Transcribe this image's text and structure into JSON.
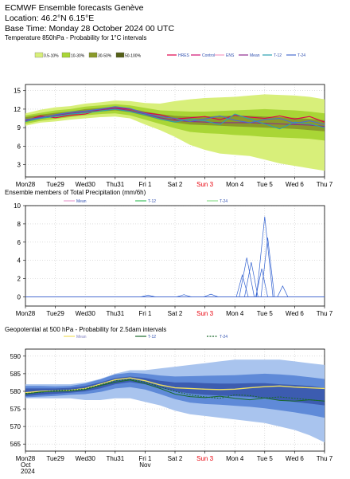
{
  "header": {
    "title": "ECMWF Ensemble forecasts Genève",
    "location": "Location:  46.2°N 6.15°E",
    "base_time": "Base Time: Monday 28 October 2024 00 UTC"
  },
  "x_axis": {
    "labels": [
      "Mon28",
      "Tue29",
      "Wed30",
      "Thu31",
      "Fri 1",
      "Sat 2",
      "Sun 3",
      "Mon 4",
      "Tue 5",
      "Wed 6",
      "Thu 7"
    ],
    "sunday_color": "#e8000b",
    "bottom_sub": {
      "Mon28": [
        "Oct",
        "2024"
      ],
      "Fri 1": [
        "Nov"
      ]
    }
  },
  "chart_data": [
    {
      "type": "area",
      "title": "Temperature 850hPa - Probability for 1°C intervals",
      "ylim": [
        1,
        16
      ],
      "yticks": [
        3,
        6,
        9,
        12,
        15
      ],
      "grid": true,
      "legend_bands": [
        {
          "label": "0.5-10%",
          "color": "#d8ef7a"
        },
        {
          "label": "10-30%",
          "color": "#a9d636"
        },
        {
          "label": "30-50%",
          "color": "#8a9a2a"
        },
        {
          "label": "50-100%",
          "color": "#556018"
        }
      ],
      "legend_lines": [
        {
          "label": "HRES",
          "color": "#e0004a"
        },
        {
          "label": "Control",
          "color": "#d01070"
        },
        {
          "label": "ENS",
          "color": "#f59ac0"
        },
        {
          "label": "Mean",
          "color": "#8e2a90"
        },
        {
          "label": "T-12",
          "color": "#2aa0b0"
        },
        {
          "label": "T-24",
          "color": "#4a6dd0"
        }
      ],
      "day_offsets": [
        0,
        0.5,
        1,
        1.5,
        2,
        2.5,
        3,
        3.5,
        4,
        4.5,
        5,
        5.5,
        6,
        6.5,
        7,
        7.5,
        8,
        8.5,
        9,
        9.5,
        10
      ],
      "band_outer_lo": [
        9.3,
        9.8,
        10.0,
        10.3,
        10.5,
        10.7,
        10.8,
        10.5,
        9.5,
        8.6,
        7.5,
        6.2,
        5.4,
        4.8,
        4.6,
        4.4,
        3.8,
        3.2,
        2.8,
        2.4,
        2.0
      ],
      "band_outer_hi": [
        11.3,
        11.9,
        12.3,
        12.5,
        12.9,
        13.1,
        13.4,
        13.3,
        13.0,
        12.9,
        13.3,
        13.6,
        13.8,
        13.9,
        14.0,
        14.2,
        14.4,
        14.3,
        14.2,
        14.0,
        13.6
      ],
      "band_mid_lo": [
        9.6,
        10.1,
        10.4,
        10.7,
        11.0,
        11.2,
        11.3,
        11.0,
        10.3,
        9.6,
        8.9,
        8.3,
        8.1,
        8.0,
        7.8,
        7.7,
        7.5,
        7.4,
        7.3,
        7.2,
        6.9
      ],
      "band_mid_hi": [
        11.0,
        11.4,
        11.8,
        12.0,
        12.4,
        12.6,
        12.8,
        12.6,
        12.2,
        11.8,
        11.7,
        11.6,
        11.6,
        11.7,
        11.8,
        11.9,
        12.0,
        11.9,
        11.8,
        11.6,
        11.3
      ],
      "band_core_lo": [
        9.9,
        10.4,
        10.8,
        11.0,
        11.4,
        11.6,
        11.8,
        11.5,
        10.9,
        10.3,
        9.8,
        9.5,
        9.4,
        9.3,
        9.2,
        9.1,
        9.0,
        8.9,
        8.8,
        8.6,
        8.4
      ],
      "band_core_hi": [
        10.7,
        11.1,
        11.4,
        11.6,
        12.0,
        12.2,
        12.4,
        12.1,
        11.6,
        11.2,
        10.9,
        10.8,
        10.8,
        10.9,
        10.9,
        10.9,
        10.8,
        10.7,
        10.6,
        10.4,
        10.2
      ],
      "series": [
        {
          "name": "HRES",
          "values": [
            10.1,
            10.9,
            10.6,
            11.0,
            11.2,
            11.9,
            12.2,
            12.0,
            11.4,
            11.1,
            10.4,
            10.6,
            10.8,
            10.3,
            11.0,
            10.7,
            10.5,
            10.9,
            10.4,
            10.8,
            9.9
          ]
        },
        {
          "name": "Mean",
          "values": [
            10.2,
            10.7,
            11.0,
            11.3,
            11.6,
            11.9,
            12.1,
            11.8,
            11.2,
            10.6,
            10.2,
            10.0,
            9.9,
            9.8,
            9.8,
            9.8,
            9.7,
            9.6,
            9.5,
            9.4,
            9.2
          ]
        },
        {
          "name": "T-12",
          "values": [
            10.0,
            10.5,
            10.8,
            11.2,
            11.4,
            11.7,
            12.0,
            11.6,
            11.1,
            10.4,
            9.9,
            10.4,
            10.1,
            9.5,
            11.2,
            10.4,
            9.6,
            8.8,
            9.9,
            9.6,
            9.0
          ]
        },
        {
          "name": "T-24",
          "values": [
            10.3,
            10.6,
            11.1,
            11.5,
            11.7,
            12.0,
            12.4,
            12.1,
            11.3,
            10.8,
            10.5,
            10.0,
            10.4,
            10.9,
            10.2,
            9.8,
            10.3,
            10.5,
            9.7,
            10.1,
            9.5
          ]
        }
      ]
    },
    {
      "type": "line",
      "title": "Ensemble members of Total Precipitation (mm/6h)",
      "ylim": [
        -1,
        10
      ],
      "yticks": [
        0,
        2,
        4,
        6,
        8,
        10
      ],
      "grid": true,
      "legend_lines": [
        {
          "label": "Mean",
          "color": "#e8a0d0"
        },
        {
          "label": "T-12",
          "color": "#40c060"
        },
        {
          "label": "T-24",
          "color": "#90e090"
        }
      ],
      "spikes": [
        {
          "day": 7.4,
          "peak": 4.3,
          "width": 0.5
        },
        {
          "day": 7.55,
          "peak": 3.8,
          "width": 0.45
        },
        {
          "day": 7.25,
          "peak": 2.4,
          "width": 0.4
        },
        {
          "day": 8.0,
          "peak": 8.8,
          "width": 0.55
        },
        {
          "day": 8.1,
          "peak": 6.5,
          "width": 0.45
        },
        {
          "day": 7.9,
          "peak": 3.1,
          "width": 0.4
        },
        {
          "day": 8.6,
          "peak": 1.2,
          "width": 0.35
        },
        {
          "day": 6.2,
          "peak": 0.3,
          "width": 0.5
        },
        {
          "day": 5.3,
          "peak": 0.25,
          "width": 0.5
        },
        {
          "day": 4.1,
          "peak": 0.2,
          "width": 0.5
        }
      ]
    },
    {
      "type": "area",
      "title": "Geopotential at 500 hPa - Probability for 2.5dam intervals",
      "ylim": [
        563,
        592
      ],
      "yticks": [
        565,
        570,
        575,
        580,
        585,
        590
      ],
      "grid": true,
      "legend_lines": [
        {
          "label": "Mean",
          "color": "#f0e060"
        },
        {
          "label": "T-12",
          "color": "#1a6a2a"
        },
        {
          "label": "T-24",
          "color": "#1a6a2a",
          "dashed": true
        }
      ],
      "day_offsets": [
        0,
        0.5,
        1,
        1.5,
        2,
        2.5,
        3,
        3.5,
        4,
        4.5,
        5,
        5.5,
        6,
        6.5,
        7,
        7.5,
        8,
        8.5,
        9,
        9.5,
        10
      ],
      "band_outer_lo": [
        578,
        578,
        578,
        578,
        577.5,
        577.5,
        578,
        578,
        577,
        576,
        574.5,
        573.5,
        573,
        572.5,
        572,
        571.5,
        571,
        570,
        569,
        567.5,
        565.5
      ],
      "band_outer_hi": [
        582,
        582,
        582,
        582,
        582.5,
        583.5,
        585,
        586,
        586,
        586.5,
        587,
        587.5,
        588,
        588.5,
        589,
        589,
        589,
        589,
        588.5,
        588,
        587.5
      ],
      "band_mid_lo": [
        578.3,
        578.5,
        578.7,
        579,
        579.2,
        579.8,
        580.8,
        581.2,
        580.5,
        579.2,
        577.8,
        576.8,
        576.4,
        576.2,
        575.9,
        575.6,
        575.2,
        574.6,
        574,
        573.3,
        572.5
      ],
      "band_mid_hi": [
        581.5,
        581.5,
        581.4,
        581.5,
        582.2,
        583.4,
        584.8,
        585.3,
        585,
        584.5,
        584.2,
        584.3,
        584.4,
        584.5,
        584.6,
        584.8,
        585,
        584.8,
        584.5,
        584,
        583.5
      ],
      "band_core_lo": [
        578.6,
        579,
        579.3,
        579.6,
        580,
        580.8,
        582,
        582.6,
        582,
        581,
        580,
        579.4,
        579,
        578.8,
        578.6,
        578.4,
        578,
        577.5,
        577,
        576.5,
        576
      ],
      "band_core_hi": [
        580.8,
        580.8,
        580.8,
        581,
        581.5,
        582.5,
        583.8,
        584.2,
        583.8,
        583,
        582.5,
        582.5,
        582.3,
        582.2,
        582.2,
        582.3,
        582.3,
        582,
        581.8,
        581.5,
        581
      ],
      "series": [
        {
          "name": "Mean",
          "values": [
            579.6,
            580,
            580.1,
            580.3,
            580.8,
            582,
            583.3,
            583.8,
            583,
            581.8,
            581,
            580.8,
            580.6,
            580.5,
            580.6,
            581,
            581.3,
            581.5,
            581.2,
            581,
            580.8
          ]
        },
        {
          "name": "T-12",
          "values": [
            579.2,
            579.8,
            580,
            580.1,
            580.5,
            581.6,
            582.6,
            583.2,
            582.2,
            580.8,
            579.2,
            578.5,
            578.2,
            578.6,
            578,
            577.6,
            578.1,
            577.4,
            577.2,
            577.6,
            577.2
          ]
        },
        {
          "name": "T-24",
          "values": [
            579.4,
            579.7,
            580.2,
            580.3,
            580.7,
            581.8,
            583,
            583.4,
            582.6,
            581.3,
            580,
            579,
            578.4,
            578,
            579,
            578.8,
            578.1,
            578.4,
            578,
            577.6,
            577.2
          ]
        }
      ]
    }
  ]
}
